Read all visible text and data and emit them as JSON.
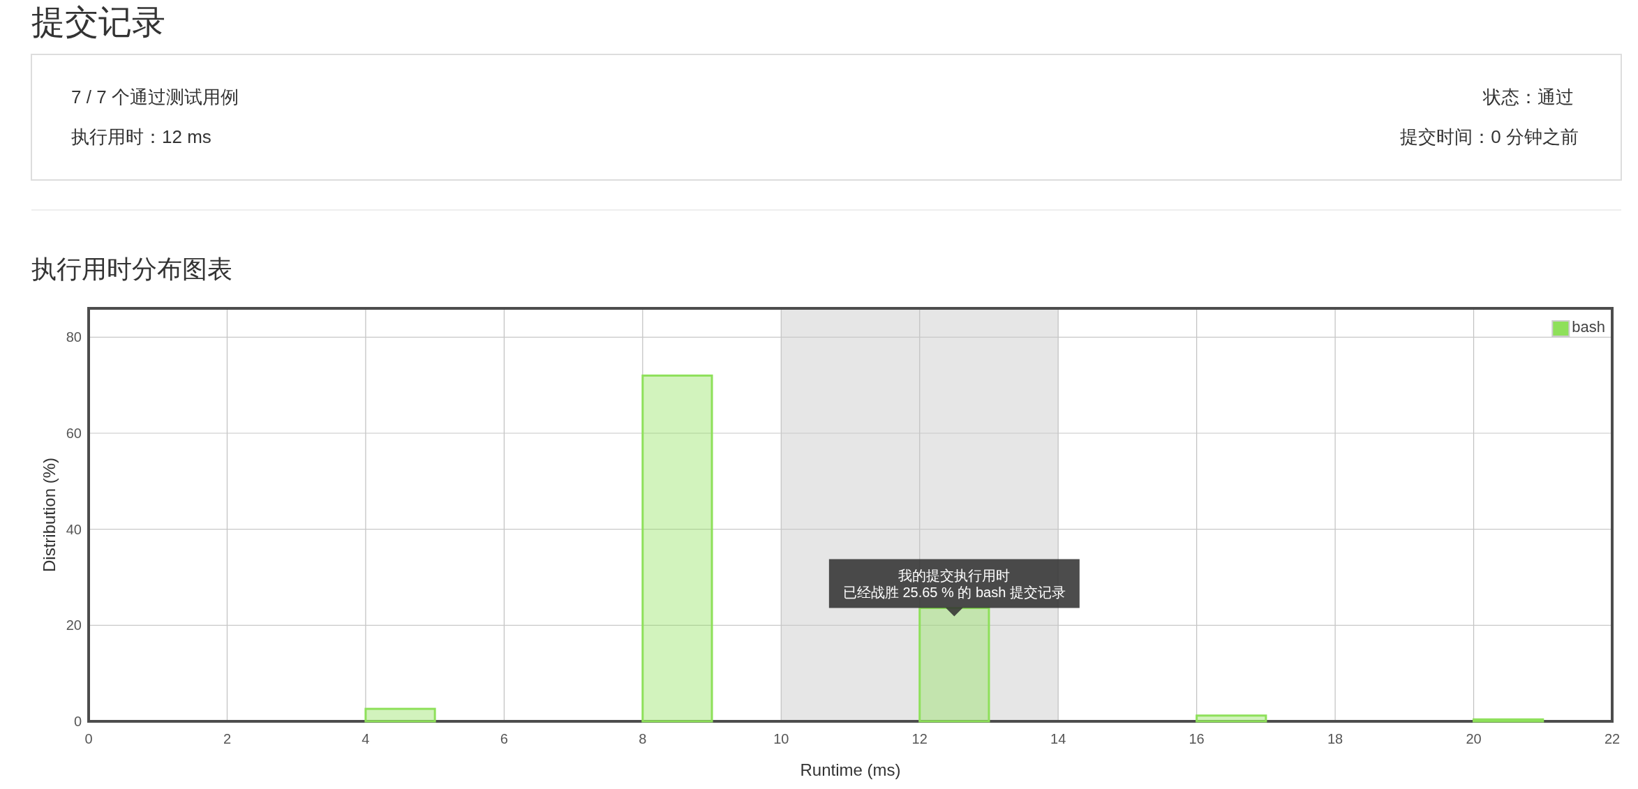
{
  "chart_data": {
    "type": "histogram",
    "title": "执行用时分布图表",
    "xlabel": "Runtime (ms)",
    "ylabel": "Distribution (%)",
    "bins": [
      4,
      5,
      6,
      7,
      8,
      9,
      10,
      11,
      12,
      13,
      14,
      15,
      16,
      17,
      18,
      19,
      20,
      21
    ],
    "series": [
      {
        "name": "bash",
        "color": "#8ee05a",
        "values": [
          2.6,
          0,
          0,
          0,
          72,
          0,
          0,
          0,
          23.6,
          0,
          0,
          0,
          1.2,
          0,
          0,
          0,
          0.4
        ]
      }
    ],
    "xlim": [
      0,
      22
    ],
    "xticks": [
      0,
      2,
      4,
      6,
      8,
      10,
      12,
      14,
      16,
      18,
      20,
      22
    ],
    "ylim": [
      0,
      86
    ],
    "yticks": [
      0,
      20,
      40,
      60,
      80
    ],
    "bands": [
      {
        "axis": "x",
        "from": 10,
        "to": 14,
        "color": "#e6e6e6"
      }
    ],
    "grid": true,
    "legend": "top right",
    "annotations": [
      "提交记录",
      "7 / 7 个通过测试用例",
      "执行用时：12 ms",
      "状态：通过",
      "提交时间：0 分钟之前",
      {
        "text": "我的提交执行用时",
        "x": 12.5,
        "y": 23.6
      },
      {
        "text": "已经战胜 25.65 % 的 bash 提交记录",
        "x": 12.5,
        "y": 23.6
      }
    ]
  }
}
